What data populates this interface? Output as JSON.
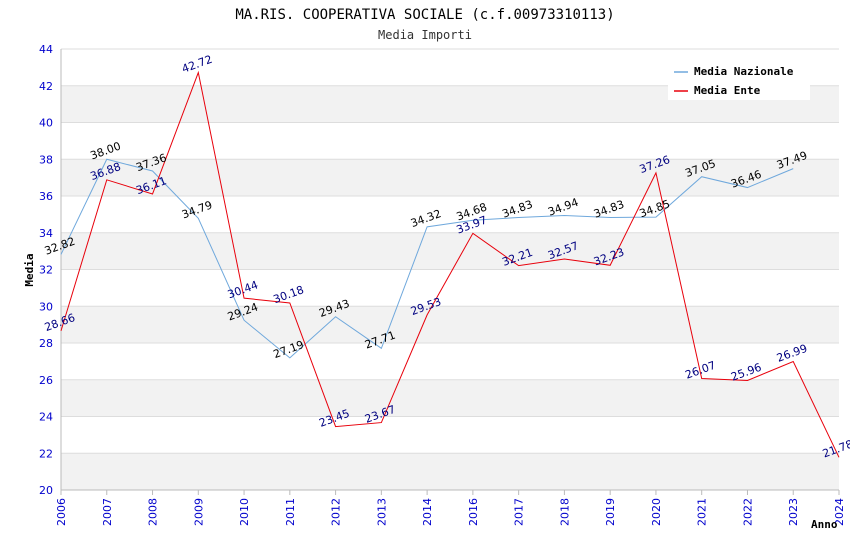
{
  "chart_data": {
    "type": "line",
    "title": "MA.RIS. COOPERATIVA SOCIALE (c.f.00973310113)",
    "subtitle": "Media Importi",
    "xlabel": "Anno",
    "ylabel": "Media",
    "ylim": [
      20,
      44
    ],
    "yticks": [
      "20",
      "22",
      "24",
      "26",
      "28",
      "30",
      "32",
      "34",
      "36",
      "38",
      "40",
      "42",
      "44"
    ],
    "grid": true,
    "legend_position": "top-right",
    "categories": [
      "2006",
      "2007",
      "2008",
      "2009",
      "2010",
      "2011",
      "2012",
      "2013",
      "2014",
      "2016",
      "2017",
      "2018",
      "2019",
      "2020",
      "2021",
      "2022",
      "2023",
      "2024"
    ],
    "series": [
      {
        "name": "Media Nazionale",
        "color": "#6fa8dc",
        "values": [
          32.82,
          38.0,
          37.36,
          34.79,
          29.24,
          27.19,
          29.43,
          27.71,
          34.32,
          34.68,
          34.83,
          34.94,
          34.83,
          34.85,
          37.05,
          36.46,
          37.49,
          null
        ],
        "labels": [
          "32.82",
          "38.00",
          "37.36",
          "34.79",
          "29.24",
          "27.19",
          "29.43",
          "27.71",
          "34.32",
          "34.68",
          "34.83",
          "34.94",
          "34.83",
          "34.85",
          "37.05",
          "36.46",
          "37.49",
          ""
        ]
      },
      {
        "name": "Media Ente",
        "color": "#e8000b",
        "values": [
          28.66,
          36.88,
          36.11,
          42.72,
          30.44,
          30.18,
          23.45,
          23.67,
          29.53,
          33.97,
          32.21,
          32.57,
          32.23,
          37.26,
          26.07,
          25.96,
          26.99,
          21.78
        ],
        "labels": [
          "28.66",
          "36.88",
          "36.11",
          "42.72",
          "30.44",
          "30.18",
          "23.45",
          "23.67",
          "29.53",
          "33.97",
          "32.21",
          "32.57",
          "32.23",
          "37.26",
          "26.07",
          "25.96",
          "26.99",
          "21.78"
        ]
      }
    ]
  }
}
